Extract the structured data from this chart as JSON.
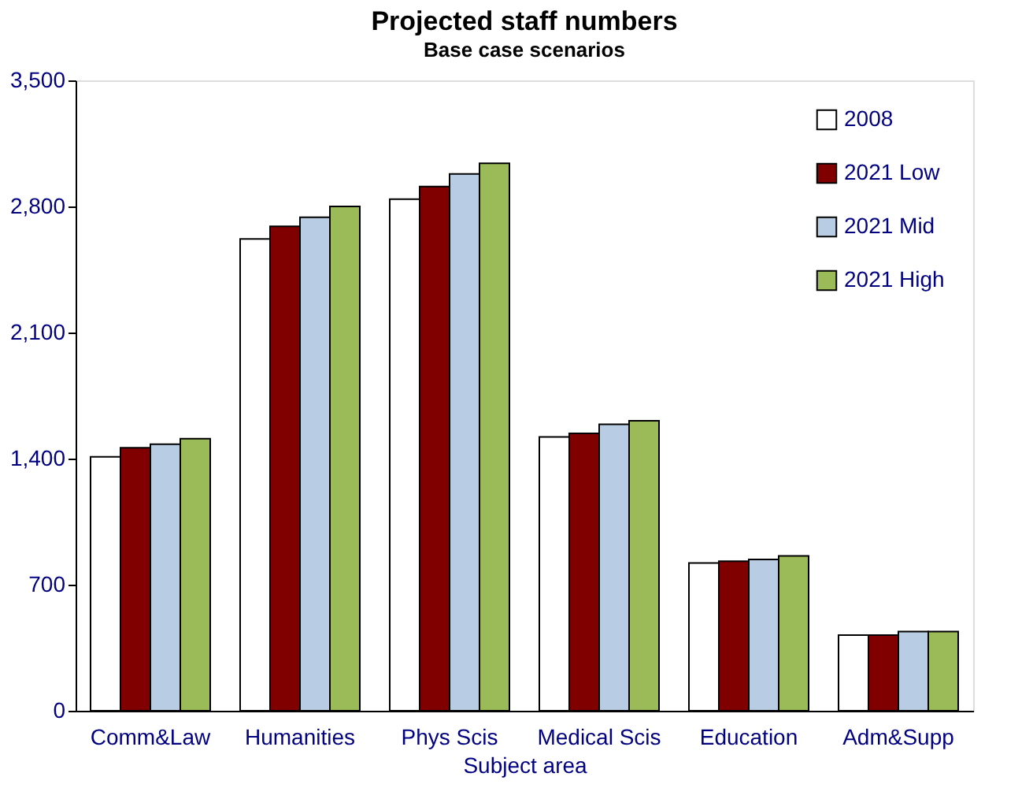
{
  "chart_data": {
    "type": "bar",
    "title": "Projected staff numbers",
    "subtitle": "Base case scenarios",
    "xlabel": "Subject area",
    "categories": [
      "Comm&Law",
      "Humanities",
      "Phys Scis",
      "Medical Scis",
      "Education",
      "Adm&Supp"
    ],
    "series": [
      {
        "name": "2008",
        "color": "#ffffff",
        "values": [
          1410,
          2620,
          2840,
          1520,
          820,
          420
        ]
      },
      {
        "name": "2021 Low",
        "color": "#800000",
        "values": [
          1460,
          2690,
          2910,
          1540,
          830,
          420
        ]
      },
      {
        "name": "2021 Mid",
        "color": "#b8cce4",
        "values": [
          1480,
          2740,
          2980,
          1590,
          840,
          440
        ]
      },
      {
        "name": "2021 High",
        "color": "#9bbb59",
        "values": [
          1510,
          2800,
          3040,
          1610,
          860,
          440
        ]
      }
    ],
    "ylim": [
      0,
      3500
    ],
    "yticks": [
      0,
      700,
      {
        "value": 1400,
        "label": "1,400"
      },
      {
        "value": 2100,
        "label": "2,100"
      },
      {
        "value": 2800,
        "label": "2,800"
      },
      {
        "value": 3500,
        "label": "3,500"
      }
    ],
    "grid": false,
    "legend": "top right"
  }
}
